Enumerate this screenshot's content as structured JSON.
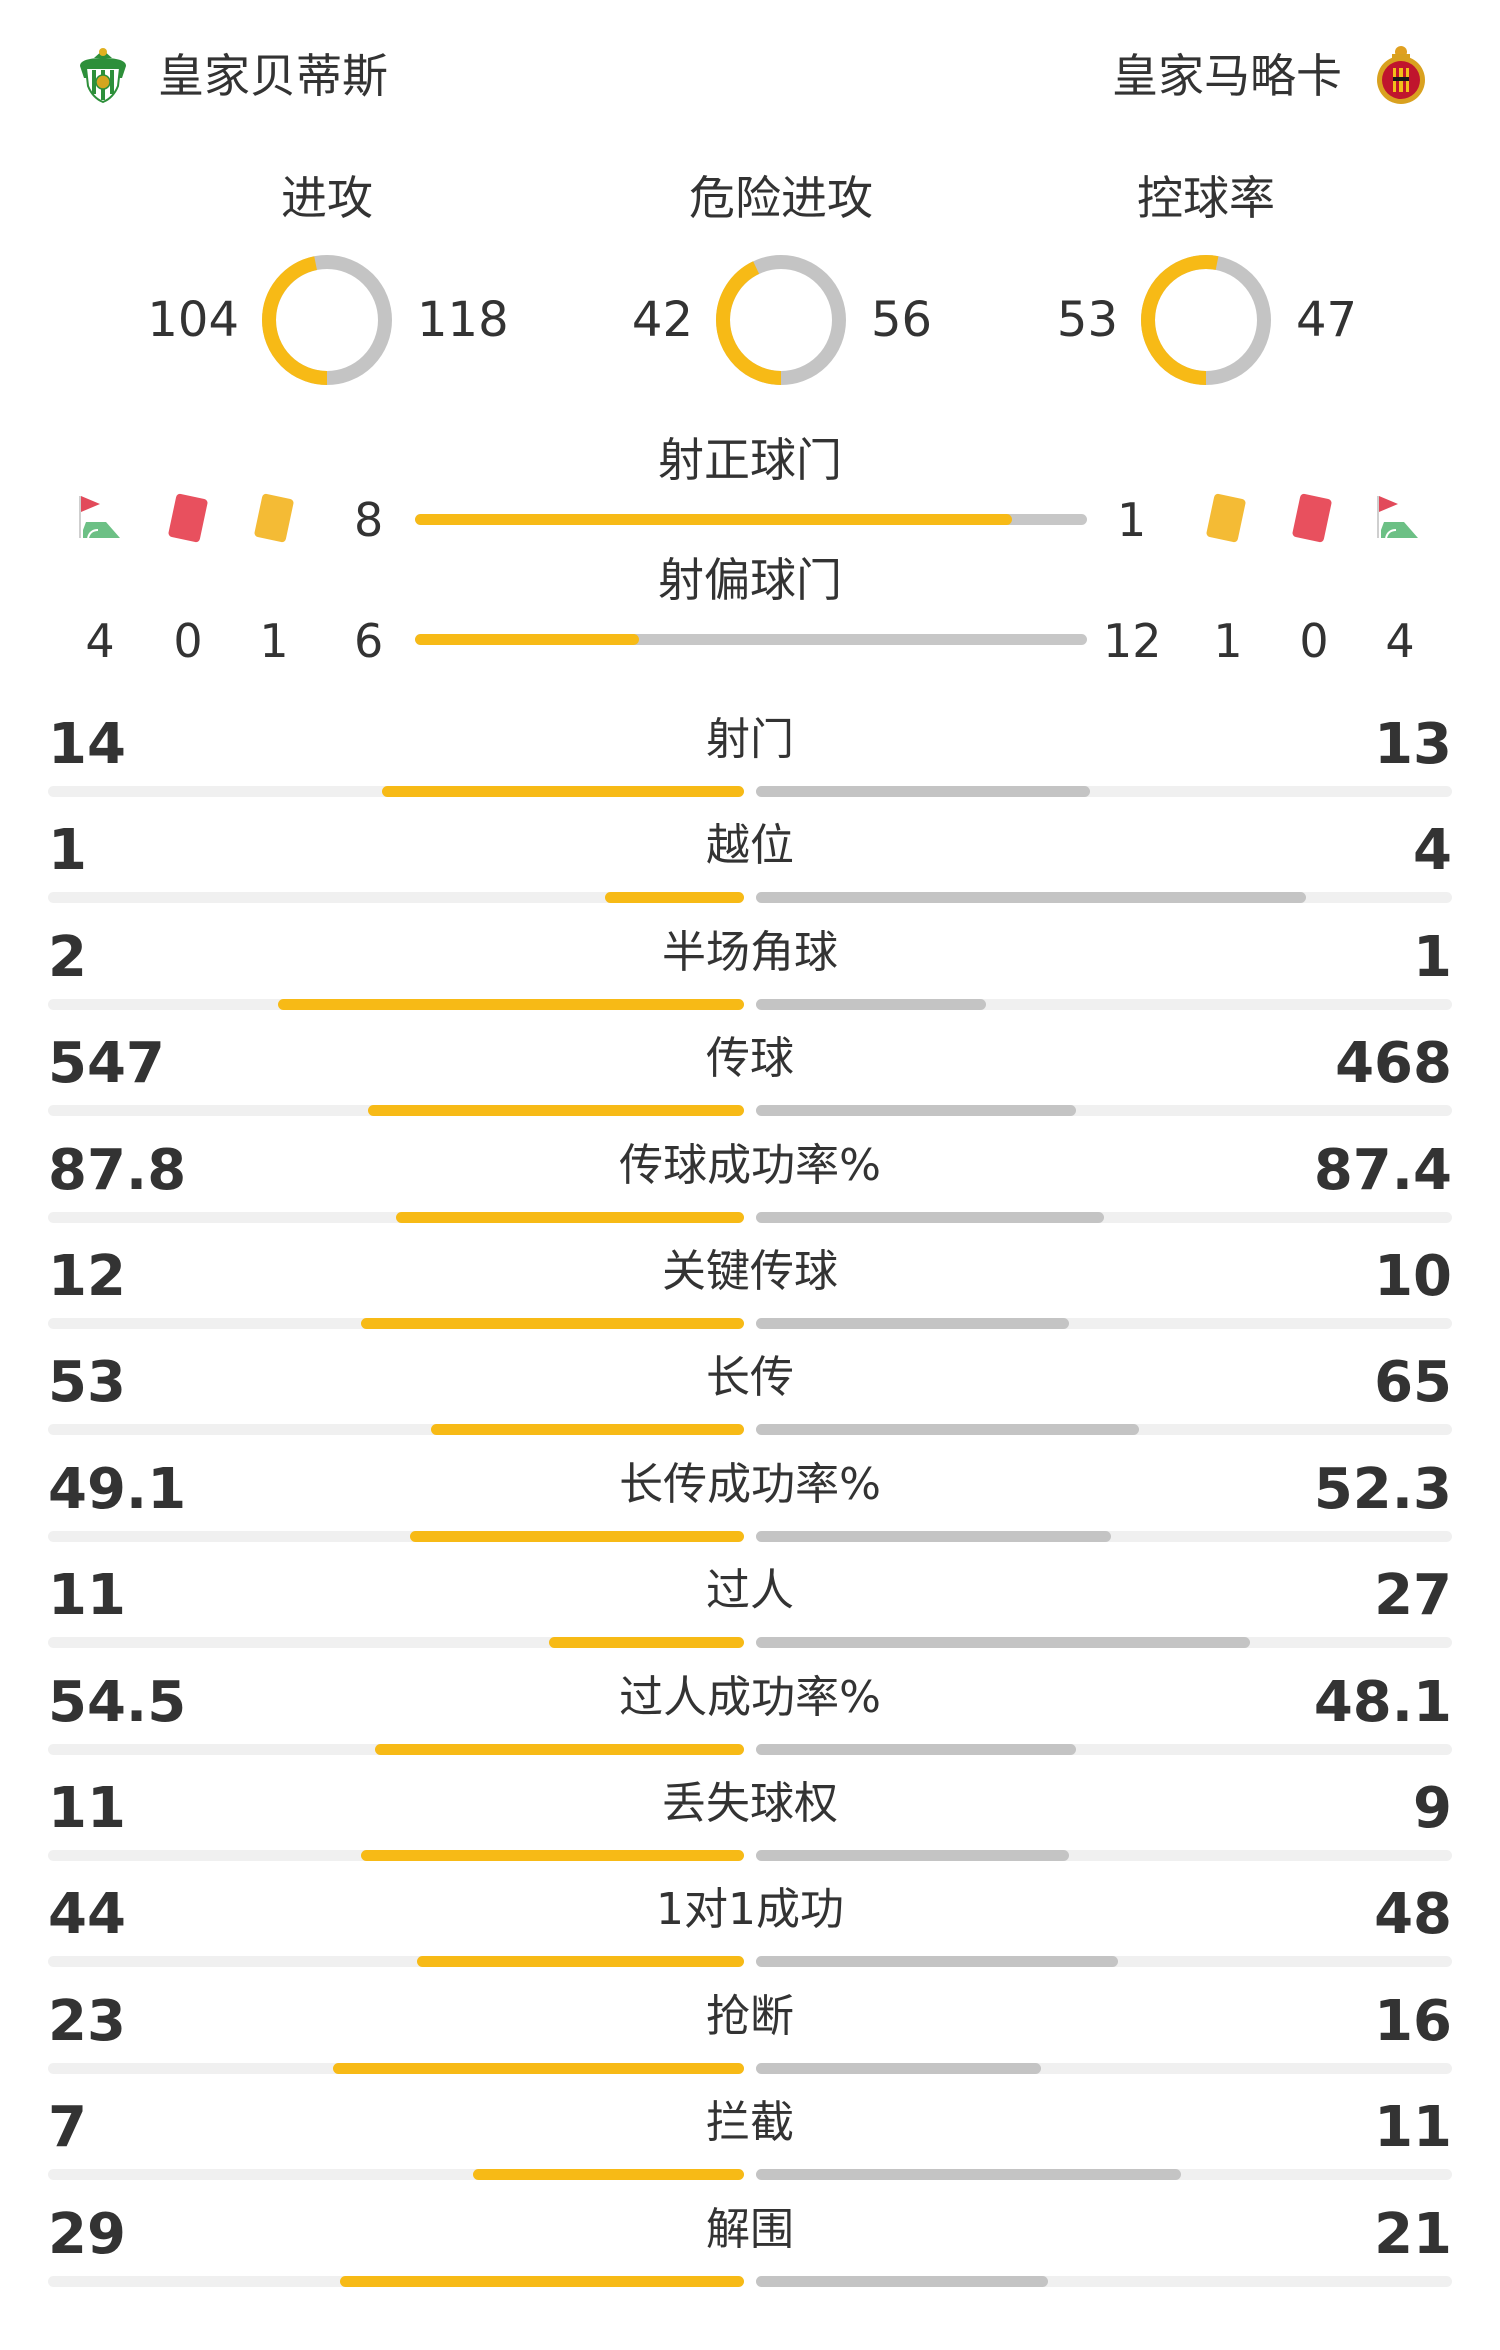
{
  "header": {
    "home_team": "皇家贝蒂斯",
    "away_team": "皇家马略卡",
    "home_crest": "real-betis-crest-icon",
    "away_crest": "mallorca-crest-icon"
  },
  "colors": {
    "home": "#f7ba16",
    "away": "#c4c4c4",
    "track": "#f0f0f0",
    "text": "#333333"
  },
  "rings": [
    {
      "title": "进攻",
      "home": "104",
      "away": "118",
      "home_share": 0.468
    },
    {
      "title": "危险进攻",
      "home": "42",
      "away": "56",
      "home_share": 0.429
    },
    {
      "title": "控球率",
      "home": "53",
      "away": "47",
      "home_share": 0.53
    }
  ],
  "shots": {
    "on_target": {
      "title": "射正球门",
      "home": "8",
      "away": "1",
      "home_share": 0.889
    },
    "off_target": {
      "title": "射偏球门",
      "home": "6",
      "away": "12",
      "home_share": 0.333
    }
  },
  "discipline": {
    "home": {
      "corners": "4",
      "red_cards": "0",
      "yellow_cards": "1"
    },
    "away": {
      "yellow_cards": "1",
      "red_cards": "0",
      "corners": "4"
    },
    "icons": [
      "corner-flag-icon",
      "red-card-icon",
      "yellow-card-icon"
    ]
  },
  "stats": [
    {
      "label": "射门",
      "home": "14",
      "away": "13",
      "home_fraction": 0.52,
      "away_fraction": 0.48
    },
    {
      "label": "越位",
      "home": "1",
      "away": "4",
      "home_fraction": 0.2,
      "away_fraction": 0.79
    },
    {
      "label": "半场角球",
      "home": "2",
      "away": "1",
      "home_fraction": 0.67,
      "away_fraction": 0.33
    },
    {
      "label": "传球",
      "home": "547",
      "away": "468",
      "home_fraction": 0.54,
      "away_fraction": 0.46
    },
    {
      "label": "传球成功率%",
      "home": "87.8",
      "away": "87.4",
      "home_fraction": 0.5,
      "away_fraction": 0.5
    },
    {
      "label": "关键传球",
      "home": "12",
      "away": "10",
      "home_fraction": 0.55,
      "away_fraction": 0.45
    },
    {
      "label": "长传",
      "home": "53",
      "away": "65",
      "home_fraction": 0.45,
      "away_fraction": 0.55
    },
    {
      "label": "长传成功率%",
      "home": "49.1",
      "away": "52.3",
      "home_fraction": 0.48,
      "away_fraction": 0.51
    },
    {
      "label": "过人",
      "home": "11",
      "away": "27",
      "home_fraction": 0.28,
      "away_fraction": 0.71
    },
    {
      "label": "过人成功率%",
      "home": "54.5",
      "away": "48.1",
      "home_fraction": 0.53,
      "away_fraction": 0.46
    },
    {
      "label": "丢失球权",
      "home": "11",
      "away": "9",
      "home_fraction": 0.55,
      "away_fraction": 0.45
    },
    {
      "label": "1对1成功",
      "home": "44",
      "away": "48",
      "home_fraction": 0.47,
      "away_fraction": 0.52
    },
    {
      "label": "抢断",
      "home": "23",
      "away": "16",
      "home_fraction": 0.59,
      "away_fraction": 0.41
    },
    {
      "label": "拦截",
      "home": "7",
      "away": "11",
      "home_fraction": 0.39,
      "away_fraction": 0.61
    },
    {
      "label": "解围",
      "home": "29",
      "away": "21",
      "home_fraction": 0.58,
      "away_fraction": 0.42
    }
  ]
}
